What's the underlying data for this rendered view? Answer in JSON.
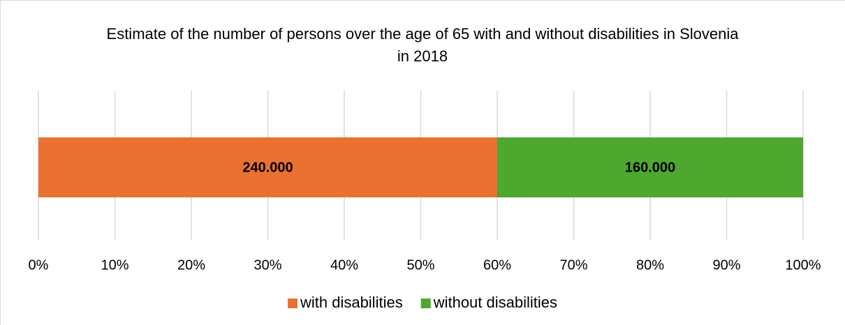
{
  "chart_data": {
    "type": "bar",
    "orientation": "horizontal",
    "stacked": "percent",
    "title": "Estimate of the number of persons over the age of 65 with and without disabilities in Slovenia in 2018",
    "series": [
      {
        "name": "with disabilities",
        "color": "#E97132",
        "values": [
          240000
        ],
        "value_labels": [
          "240.000"
        ]
      },
      {
        "name": "without disabilities",
        "color": "#4EA72E",
        "values": [
          160000
        ],
        "value_labels": [
          "160.000"
        ]
      }
    ],
    "xlim": [
      0,
      100
    ],
    "xticks": [
      {
        "value": 0,
        "label": "0%"
      },
      {
        "value": 10,
        "label": "10%"
      },
      {
        "value": 20,
        "label": "20%"
      },
      {
        "value": 30,
        "label": "30%"
      },
      {
        "value": 40,
        "label": "40%"
      },
      {
        "value": 50,
        "label": "50%"
      },
      {
        "value": 60,
        "label": "60%"
      },
      {
        "value": 70,
        "label": "70%"
      },
      {
        "value": 80,
        "label": "80%"
      },
      {
        "value": 90,
        "label": "90%"
      },
      {
        "value": 100,
        "label": "100%"
      }
    ],
    "grid": true,
    "legend": "bottom"
  }
}
